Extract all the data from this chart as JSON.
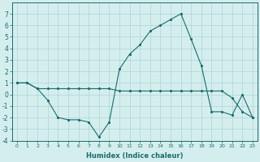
{
  "xlabel": "Humidex (Indice chaleur)",
  "x": [
    0,
    1,
    2,
    3,
    4,
    5,
    6,
    7,
    8,
    9,
    10,
    11,
    12,
    13,
    14,
    15,
    16,
    17,
    18,
    19,
    20,
    21,
    22,
    23
  ],
  "line1": [
    1.0,
    1.0,
    0.5,
    0.5,
    0.5,
    0.5,
    0.5,
    0.5,
    0.5,
    0.5,
    0.3,
    0.3,
    0.3,
    0.3,
    0.3,
    0.3,
    0.3,
    0.3,
    0.3,
    0.3,
    0.3,
    -0.3,
    -1.5,
    -2.0
  ],
  "line2": [
    1.0,
    1.0,
    0.5,
    -0.5,
    -2.0,
    -2.2,
    -2.2,
    -2.4,
    -3.7,
    -2.4,
    2.2,
    3.5,
    4.3,
    5.5,
    6.0,
    6.5,
    7.0,
    4.8,
    2.5,
    -1.5,
    -1.5,
    -1.8,
    0.0,
    -2.0
  ],
  "line_color": "#1a6b6b",
  "background_color": "#d4eeee",
  "grid_color": "#b0d4d4",
  "ylim": [
    -4,
    8
  ],
  "yticks": [
    -4,
    -3,
    -2,
    -1,
    0,
    1,
    2,
    3,
    4,
    5,
    6,
    7
  ],
  "xlim": [
    -0.5,
    23.5
  ]
}
